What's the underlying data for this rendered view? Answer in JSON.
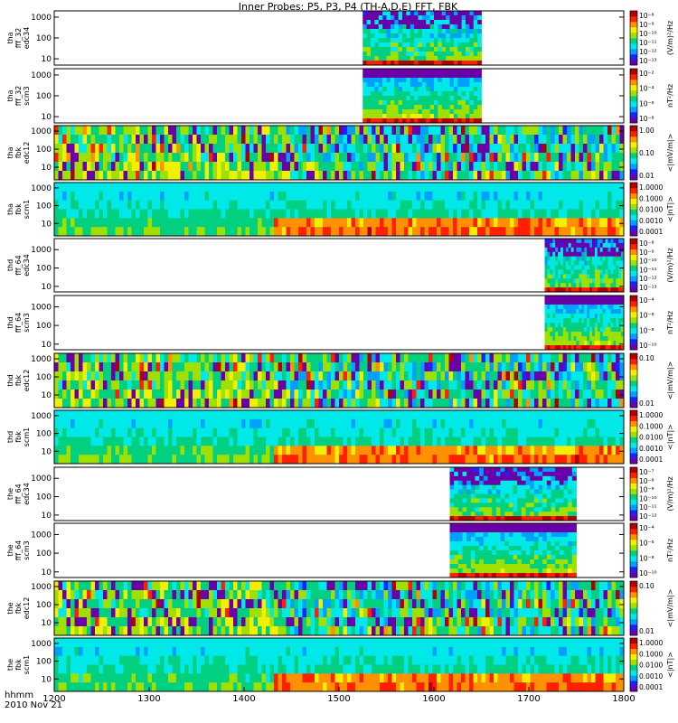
{
  "title": "Inner Probes: P5, P3, P4 (TH-A,D,E) FFT, FBK",
  "footer": {
    "time_label": "hhmm",
    "date_label": "2010 Nov 21"
  },
  "chart_data": {
    "type": "heatmap",
    "x_label": "hhmm",
    "x_ticks": [
      "1200",
      "1300",
      "1400",
      "1500",
      "1600",
      "1700",
      "1800"
    ],
    "x_range": [
      "1200",
      "1800"
    ],
    "panels": [
      {
        "ylabel": [
          "tha",
          "fff_32",
          "edc34"
        ],
        "yticks": [
          "1000",
          "100",
          "10"
        ],
        "yrange": [
          5,
          2000
        ],
        "yscale": "log",
        "cb_label": "(V/m)²/Hz",
        "cb_ticks": [
          "10⁻⁸",
          "10⁻⁹",
          "10⁻¹⁰",
          "10⁻¹¹",
          "10⁻¹²",
          "10⁻¹³"
        ],
        "kind": "fff_e",
        "data_start": "1515",
        "data_end": "1630"
      },
      {
        "ylabel": [
          "tha",
          "fff_32",
          "scm3"
        ],
        "yticks": [
          "1000",
          "100",
          "10"
        ],
        "yrange": [
          5,
          2000
        ],
        "yscale": "log",
        "cb_label": "nT²/Hz",
        "cb_ticks": [
          "10⁻²",
          "10⁻⁴",
          "10⁻⁶",
          "10⁻⁸"
        ],
        "kind": "fff_b",
        "data_start": "1515",
        "data_end": "1630"
      },
      {
        "ylabel": [
          "tha",
          "fbk",
          "edc12"
        ],
        "yticks": [
          "1000",
          "100",
          "10"
        ],
        "yrange": [
          2,
          2000
        ],
        "yscale": "log",
        "cb_label": "<|mV/m|>",
        "cb_ticks": [
          "1.00",
          "0.10",
          "0.01"
        ],
        "kind": "fbk_e",
        "data_start": "1200",
        "data_end": "1800"
      },
      {
        "ylabel": [
          "tha",
          "fbk",
          "scm1"
        ],
        "yticks": [
          "1000",
          "100",
          "10"
        ],
        "yrange": [
          2,
          2000
        ],
        "yscale": "log",
        "cb_label": "<|nT|>",
        "cb_ticks": [
          "1.0000",
          "0.1000",
          "0.0100",
          "0.0010",
          "0.0001"
        ],
        "kind": "fbk_b",
        "data_start": "1200",
        "data_end": "1800"
      },
      {
        "ylabel": [
          "thd",
          "fff_64",
          "edc34"
        ],
        "yticks": [
          "1000",
          "100",
          "10"
        ],
        "yrange": [
          5,
          4000
        ],
        "yscale": "log",
        "cb_label": "(V/m)²/Hz",
        "cb_ticks": [
          "10⁻⁸",
          "10⁻⁹",
          "10⁻¹⁰",
          "10⁻¹¹",
          "10⁻¹²",
          "10⁻¹³"
        ],
        "kind": "fff_e",
        "data_start": "1710",
        "data_end": "1800"
      },
      {
        "ylabel": [
          "thd",
          "fff_64",
          "scm3"
        ],
        "yticks": [
          "1000",
          "100",
          "10"
        ],
        "yrange": [
          5,
          4000
        ],
        "yscale": "log",
        "cb_label": "nT²/Hz",
        "cb_ticks": [
          "10⁻⁴",
          "10⁻⁶",
          "10⁻⁸",
          "10⁻¹⁰"
        ],
        "kind": "fff_b",
        "data_start": "1710",
        "data_end": "1800"
      },
      {
        "ylabel": [
          "thd",
          "fbk",
          "edc12"
        ],
        "yticks": [
          "1000",
          "100",
          "10"
        ],
        "yrange": [
          2,
          2000
        ],
        "yscale": "log",
        "cb_label": "<|mV/m|>",
        "cb_ticks": [
          "0.10",
          "0.01"
        ],
        "kind": "fbk_e",
        "data_start": "1200",
        "data_end": "1800"
      },
      {
        "ylabel": [
          "thd",
          "fbk",
          "scm1"
        ],
        "yticks": [
          "1000",
          "100",
          "10"
        ],
        "yrange": [
          2,
          2000
        ],
        "yscale": "log",
        "cb_label": "<|nT|>",
        "cb_ticks": [
          "1.0000",
          "0.1000",
          "0.0100",
          "0.0010",
          "0.0001"
        ],
        "kind": "fbk_b",
        "data_start": "1200",
        "data_end": "1800"
      },
      {
        "ylabel": [
          "the",
          "fff_64",
          "edc34"
        ],
        "yticks": [
          "1000",
          "100",
          "10"
        ],
        "yrange": [
          5,
          4000
        ],
        "yscale": "log",
        "cb_label": "(V/m)²/Hz",
        "cb_ticks": [
          "10⁻⁷",
          "10⁻⁸",
          "10⁻⁹",
          "10⁻¹⁰",
          "10⁻¹¹",
          "10⁻¹²"
        ],
        "kind": "fff_e",
        "data_start": "1610",
        "data_end": "1730"
      },
      {
        "ylabel": [
          "the",
          "fff_64",
          "scm3"
        ],
        "yticks": [
          "1000",
          "100",
          "10"
        ],
        "yrange": [
          5,
          4000
        ],
        "yscale": "log",
        "cb_label": "nT²/Hz",
        "cb_ticks": [
          "10⁻⁴",
          "10⁻⁶",
          "10⁻⁸",
          "10⁻¹⁰"
        ],
        "kind": "fff_b",
        "data_start": "1610",
        "data_end": "1730"
      },
      {
        "ylabel": [
          "the",
          "fbk",
          "edc12"
        ],
        "yticks": [
          "1000",
          "100",
          "10"
        ],
        "yrange": [
          2,
          2000
        ],
        "yscale": "log",
        "cb_label": "<|mV/m|>",
        "cb_ticks": [
          "0.10",
          "0.01"
        ],
        "kind": "fbk_e",
        "data_start": "1200",
        "data_end": "1800"
      },
      {
        "ylabel": [
          "the",
          "fbk",
          "scm1"
        ],
        "yticks": [
          "1000",
          "100",
          "10"
        ],
        "yrange": [
          2,
          2000
        ],
        "yscale": "log",
        "cb_label": "<|nT|>",
        "cb_ticks": [
          "1.0000",
          "0.1000",
          "0.0100",
          "0.0010",
          "0.0001"
        ],
        "kind": "fbk_b",
        "data_start": "1200",
        "data_end": "1800"
      }
    ],
    "colormap": [
      "#6a00a8",
      "#2020ff",
      "#00a0ff",
      "#00e8e8",
      "#00d080",
      "#a0e000",
      "#f0f000",
      "#ff9000",
      "#ff2000",
      "#b00000"
    ]
  }
}
